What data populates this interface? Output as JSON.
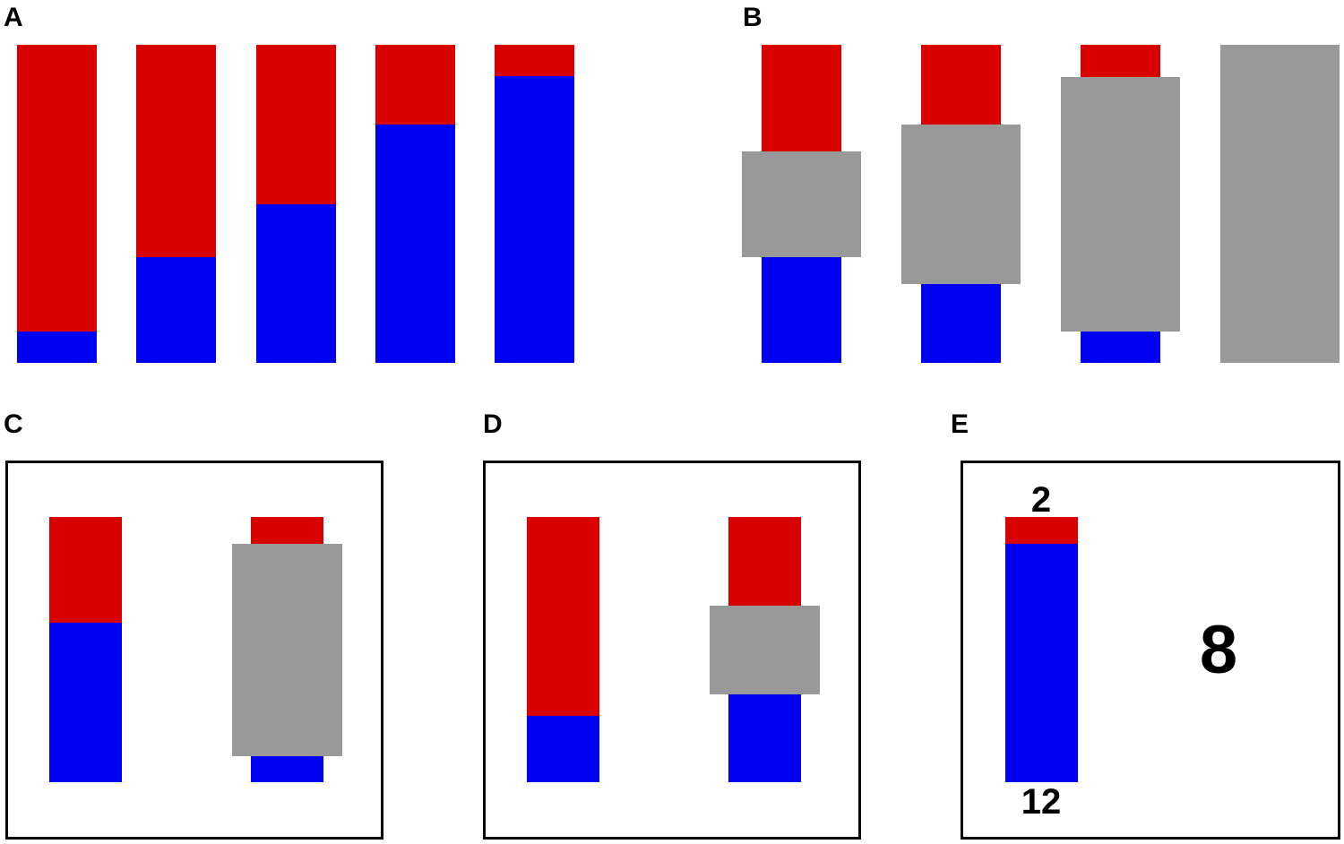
{
  "labels": {
    "A": "A",
    "B": "B",
    "C": "C",
    "D": "D",
    "E": "E"
  },
  "colors": {
    "red": "#d90000",
    "blue": "#0000f2",
    "gray": "#999999",
    "border": "#000000"
  },
  "panel_a": {
    "blue_fractions": [
      0.1,
      0.333,
      0.5,
      0.75,
      0.9
    ]
  },
  "panel_b": {
    "masked_fractions": [
      0.333,
      0.5,
      0.8,
      1.0
    ]
  },
  "panel_c": {
    "blue_fraction": 0.6,
    "masked_fraction": 0.8
  },
  "panel_d": {
    "blue_fraction": 0.25,
    "masked_fraction": 0.333
  },
  "panel_e": {
    "top_count": "2",
    "bottom_count": "12",
    "masked_count": "8"
  }
}
